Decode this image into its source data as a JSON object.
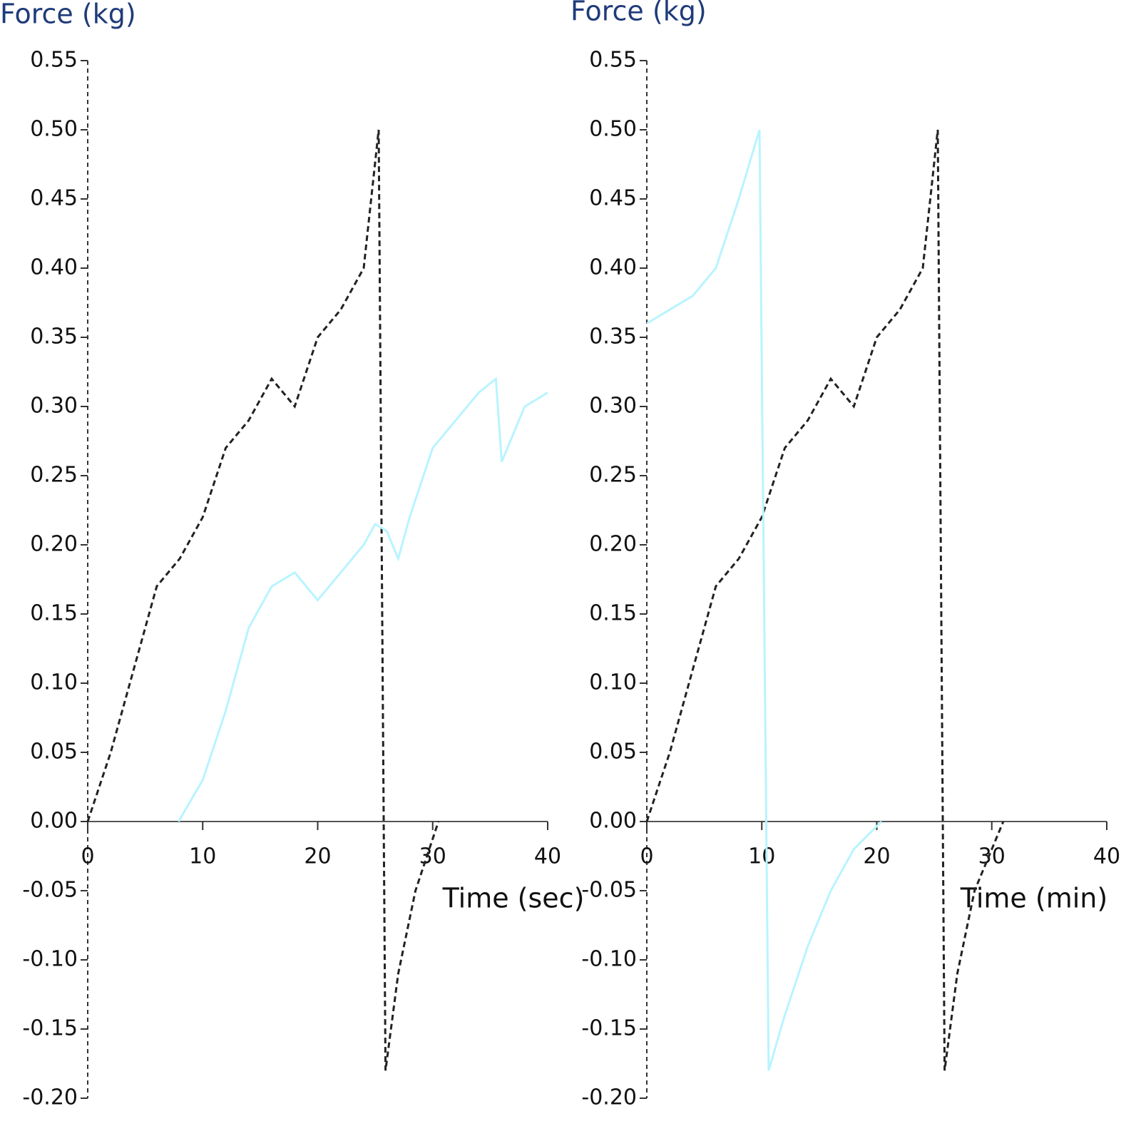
{
  "chart_data": [
    {
      "type": "line",
      "y_label": "Force (kg)",
      "x_label": "Time (sec)",
      "xlim": [
        0,
        40
      ],
      "xticks": [
        0,
        10,
        20,
        30,
        40
      ],
      "ylim": [
        -0.2,
        0.55
      ],
      "yticks": [
        {
          "value": -0.2,
          "label": "-0.20"
        },
        -0.15,
        {
          "value": -0.1,
          "label": "-0.10"
        },
        -0.05,
        {
          "value": 0,
          "label": "0.00"
        },
        0.05,
        {
          "value": 0.1,
          "label": "0.10"
        },
        0.15,
        {
          "value": 0.2,
          "label": "0.20"
        },
        0.25,
        {
          "value": 0.3,
          "label": "0.30"
        },
        0.35,
        {
          "value": 0.4,
          "label": "0.40"
        },
        0.45,
        {
          "value": 0.5,
          "label": "0.50"
        },
        0.55
      ],
      "series": [
        {
          "color": "#222222",
          "dashed": true,
          "x": [
            0,
            2,
            4,
            6,
            8,
            10,
            12,
            14,
            16,
            18,
            20,
            22,
            24,
            25.3,
            25.9,
            27,
            28.5,
            30.5
          ],
          "values": [
            0,
            0.05,
            0.11,
            0.17,
            0.19,
            0.22,
            0.27,
            0.29,
            0.32,
            0.3,
            0.35,
            0.37,
            0.4,
            0.5,
            -0.18,
            -0.11,
            -0.05,
            0
          ]
        },
        {
          "color": "#b8f4ff",
          "dashed": false,
          "x": [
            7.9,
            10,
            12,
            14,
            16,
            18,
            20,
            21,
            22,
            24,
            25,
            26,
            27,
            28,
            30,
            32,
            34,
            35.5,
            36,
            38,
            40
          ],
          "values": [
            0,
            0.03,
            0.08,
            0.14,
            0.17,
            0.18,
            0.16,
            0.17,
            0.18,
            0.2,
            0.215,
            0.21,
            0.19,
            0.22,
            0.27,
            0.29,
            0.31,
            0.32,
            0.26,
            0.3,
            0.31
          ]
        }
      ]
    },
    {
      "type": "line",
      "y_label": "Force (kg)",
      "x_label": "Time (min)",
      "xlim": [
        0,
        40
      ],
      "xticks": [
        0,
        10,
        20,
        30,
        40
      ],
      "ylim": [
        -0.2,
        0.55
      ],
      "yticks": [
        {
          "value": -0.2,
          "label": "-0.20"
        },
        -0.15,
        {
          "value": -0.1,
          "label": "-0.10"
        },
        -0.05,
        {
          "value": 0,
          "label": "0.00"
        },
        0.05,
        {
          "value": 0.1,
          "label": "0.10"
        },
        0.15,
        {
          "value": 0.2,
          "label": "0.20"
        },
        0.25,
        {
          "value": 0.3,
          "label": "0.30"
        },
        0.35,
        {
          "value": 0.4,
          "label": "0.40"
        },
        0.45,
        {
          "value": 0.5,
          "label": "0.50"
        },
        0.55
      ],
      "series": [
        {
          "color": "#222222",
          "dashed": true,
          "x": [
            0,
            2,
            4,
            6,
            8,
            10,
            12,
            14,
            16,
            18,
            20,
            22,
            24,
            25.3,
            25.9,
            27,
            28.5,
            31
          ],
          "values": [
            0,
            0.05,
            0.11,
            0.17,
            0.19,
            0.22,
            0.27,
            0.29,
            0.32,
            0.3,
            0.35,
            0.37,
            0.4,
            0.5,
            -0.18,
            -0.11,
            -0.05,
            0
          ]
        },
        {
          "color": "#b8f4ff",
          "dashed": false,
          "x": [
            0,
            2,
            4,
            6,
            8,
            9.8,
            10.6,
            12,
            14,
            16,
            18,
            20.4
          ],
          "values": [
            0.36,
            0.37,
            0.38,
            0.4,
            0.45,
            0.5,
            -0.18,
            -0.14,
            -0.09,
            -0.05,
            -0.02,
            0
          ]
        }
      ]
    }
  ]
}
